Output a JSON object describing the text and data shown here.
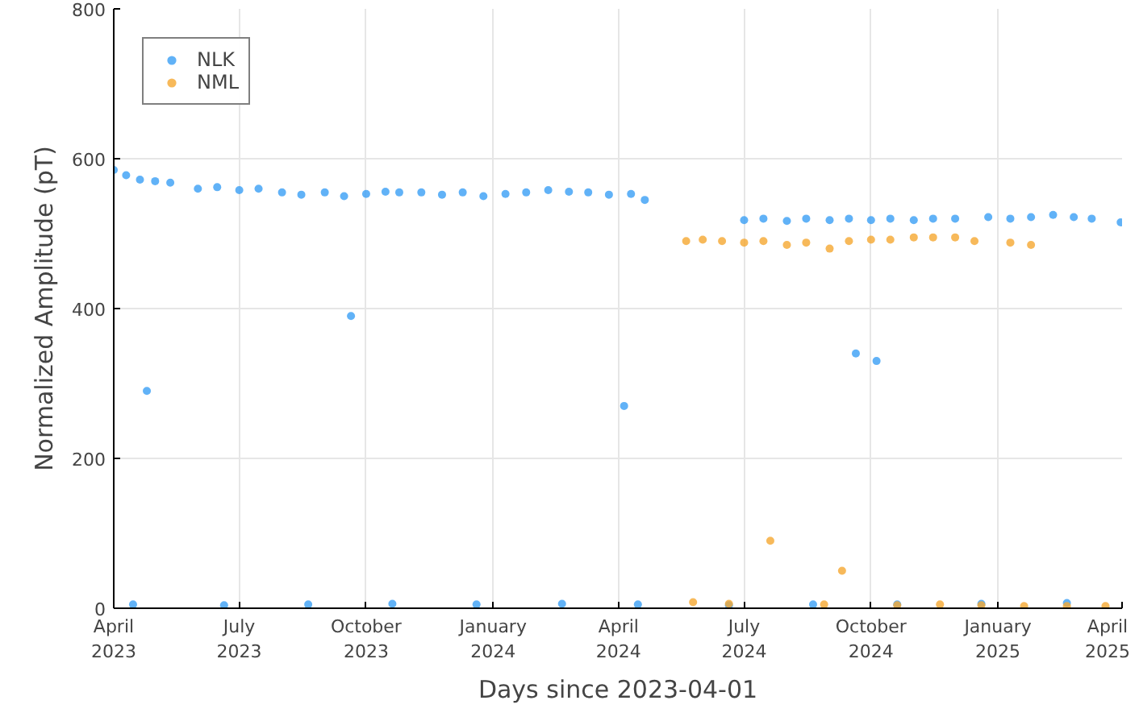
{
  "chart_data": {
    "type": "scatter",
    "xlabel": "Days since 2023-04-01",
    "ylabel": "Normalized Amplitude (pT)",
    "xlim": [
      "2023-04-01",
      "2025-04-01"
    ],
    "xticks": [
      {
        "value": "2023-04-01",
        "label": "April\n2023"
      },
      {
        "value": "2023-07-01",
        "label": "July\n2023"
      },
      {
        "value": "2023-10-01",
        "label": "October\n2023"
      },
      {
        "value": "2024-01-01",
        "label": "January\n2024"
      },
      {
        "value": "2024-04-01",
        "label": "April\n2024"
      },
      {
        "value": "2024-07-01",
        "label": "July\n2024"
      },
      {
        "value": "2024-10-01",
        "label": "October\n2024"
      },
      {
        "value": "2025-01-01",
        "label": "January\n2025"
      },
      {
        "value": "2025-04-01",
        "label": "April\n2025"
      }
    ],
    "ylim": [
      0,
      800
    ],
    "yticks": [
      0,
      200,
      400,
      600,
      800
    ],
    "grid": true,
    "legend": "top left",
    "marker": "circle",
    "series": [
      {
        "name": "NLK",
        "color": "#3a9ff5",
        "x": [
          "2023-04-01",
          "2023-04-10",
          "2023-04-20",
          "2023-05-01",
          "2023-05-12",
          "2023-06-01",
          "2023-06-15",
          "2023-07-01",
          "2023-07-15",
          "2023-08-01",
          "2023-08-15",
          "2023-09-01",
          "2023-09-15",
          "2023-10-01",
          "2023-10-15",
          "2023-10-25",
          "2023-11-10",
          "2023-11-25",
          "2023-12-10",
          "2023-12-25",
          "2024-01-10",
          "2024-01-25",
          "2024-02-10",
          "2024-02-25",
          "2024-03-10",
          "2024-03-25",
          "2024-04-10",
          "2024-04-20",
          "2024-07-01",
          "2024-07-15",
          "2024-08-01",
          "2024-08-15",
          "2024-09-01",
          "2024-09-15",
          "2024-10-01",
          "2024-10-15",
          "2024-11-01",
          "2024-11-15",
          "2024-12-01",
          "2024-12-25",
          "2025-01-10",
          "2025-01-25",
          "2025-02-10",
          "2025-02-25",
          "2025-03-10",
          "2025-03-31",
          "2023-04-25",
          "2023-09-20",
          "2024-04-05",
          "2024-09-20",
          "2024-10-05",
          "2023-04-15",
          "2023-06-20",
          "2023-08-20",
          "2023-10-20",
          "2023-12-20",
          "2024-02-20",
          "2024-04-15",
          "2024-06-20",
          "2024-08-20",
          "2024-10-20",
          "2024-12-20",
          "2025-02-20"
        ],
        "values": [
          585,
          578,
          572,
          570,
          568,
          560,
          562,
          558,
          560,
          555,
          552,
          555,
          550,
          553,
          556,
          555,
          555,
          552,
          555,
          550,
          553,
          555,
          558,
          556,
          555,
          552,
          553,
          545,
          518,
          520,
          517,
          520,
          518,
          520,
          518,
          520,
          518,
          520,
          520,
          522,
          520,
          522,
          525,
          522,
          520,
          515,
          290,
          390,
          270,
          340,
          330,
          5,
          4,
          5,
          6,
          5,
          6,
          5,
          4,
          5,
          5,
          6,
          7
        ]
      },
      {
        "name": "NML",
        "color": "#f5a731",
        "x": [
          "2024-05-20",
          "2024-06-01",
          "2024-06-15",
          "2024-07-01",
          "2024-07-15",
          "2024-08-01",
          "2024-08-15",
          "2024-09-01",
          "2024-09-15",
          "2024-10-01",
          "2024-10-15",
          "2024-11-01",
          "2024-11-15",
          "2024-12-01",
          "2024-12-15",
          "2025-01-10",
          "2025-01-25",
          "2024-05-25",
          "2024-06-20",
          "2024-07-20",
          "2024-08-28",
          "2024-09-10",
          "2024-10-20",
          "2024-11-20",
          "2024-12-20",
          "2025-01-20",
          "2025-02-20",
          "2025-03-20"
        ],
        "values": [
          490,
          492,
          490,
          488,
          490,
          485,
          488,
          480,
          490,
          492,
          492,
          495,
          495,
          495,
          490,
          488,
          485,
          8,
          6,
          90,
          5,
          50,
          4,
          5,
          4,
          3,
          3,
          3
        ]
      }
    ]
  }
}
